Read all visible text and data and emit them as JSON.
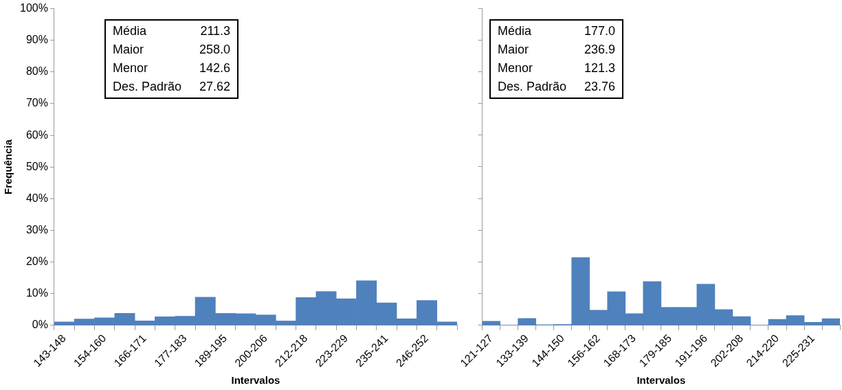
{
  "chart_data": [
    {
      "type": "bar",
      "ylabel": "Frequência",
      "xlabel": "Intervalos",
      "color": "#4f81bd",
      "grid": false,
      "legend": false,
      "categories": [
        "143-148",
        null,
        "154-160",
        null,
        "166-171",
        null,
        "177-183",
        null,
        "189-195",
        null,
        "200-206",
        null,
        "212-218",
        null,
        "223-229",
        null,
        "235-241",
        null,
        "246-252",
        null
      ],
      "values": [
        1.1,
        2.0,
        2.4,
        3.8,
        1.4,
        2.7,
        2.9,
        8.9,
        3.8,
        3.7,
        3.3,
        1.4,
        8.8,
        10.7,
        8.4,
        14.1,
        7.1,
        2.1,
        7.9,
        1.1
      ],
      "ylim": [
        0,
        100
      ],
      "yticks": [
        {
          "value": 0,
          "label": "0%"
        },
        {
          "value": 10,
          "label": "10%"
        },
        {
          "value": 20,
          "label": "20%"
        },
        {
          "value": 30,
          "label": "30%"
        },
        {
          "value": 40,
          "label": "40%"
        },
        {
          "value": 50,
          "label": "50%"
        },
        {
          "value": 60,
          "label": "60%"
        },
        {
          "value": 70,
          "label": "70%"
        },
        {
          "value": 80,
          "label": "80%"
        },
        {
          "value": 90,
          "label": "90%"
        },
        {
          "value": 100,
          "label": "100%"
        }
      ],
      "annotations": [
        "Média 211.3",
        "Maior 258.0",
        "Menor 142.6",
        "Des. Padrão 27.62"
      ]
    },
    {
      "type": "bar",
      "xlabel": "Intervalos",
      "color": "#4f81bd",
      "grid": false,
      "legend": false,
      "tick_labels": "x",
      "categories": [
        "121-127",
        null,
        "133-139",
        null,
        "144-150",
        null,
        "156-162",
        null,
        "168-173",
        null,
        "179-185",
        null,
        "191-196",
        null,
        "202-208",
        null,
        "214-220",
        null,
        "225-231",
        null
      ],
      "values": [
        1.3,
        0,
        2.2,
        0.2,
        0.3,
        21.4,
        4.8,
        10.6,
        3.7,
        13.8,
        5.7,
        5.7,
        13.0,
        5.0,
        2.8,
        0,
        1.9,
        3.1,
        1.0,
        2.1
      ],
      "ylim": [
        0,
        100
      ],
      "yticks": [
        {
          "value": 0,
          "label": null
        },
        {
          "value": 10,
          "label": null
        },
        {
          "value": 20,
          "label": null
        },
        {
          "value": 30,
          "label": null
        },
        {
          "value": 40,
          "label": null
        },
        {
          "value": 50,
          "label": null
        },
        {
          "value": 60,
          "label": null
        },
        {
          "value": 70,
          "label": null
        },
        {
          "value": 80,
          "label": null
        },
        {
          "value": 90,
          "label": null
        },
        {
          "value": 100,
          "label": null
        }
      ],
      "annotations": [
        "Média 177.0",
        "Maior 236.9",
        "Menor 121.3",
        "Des. Padrão 23.76"
      ]
    }
  ]
}
